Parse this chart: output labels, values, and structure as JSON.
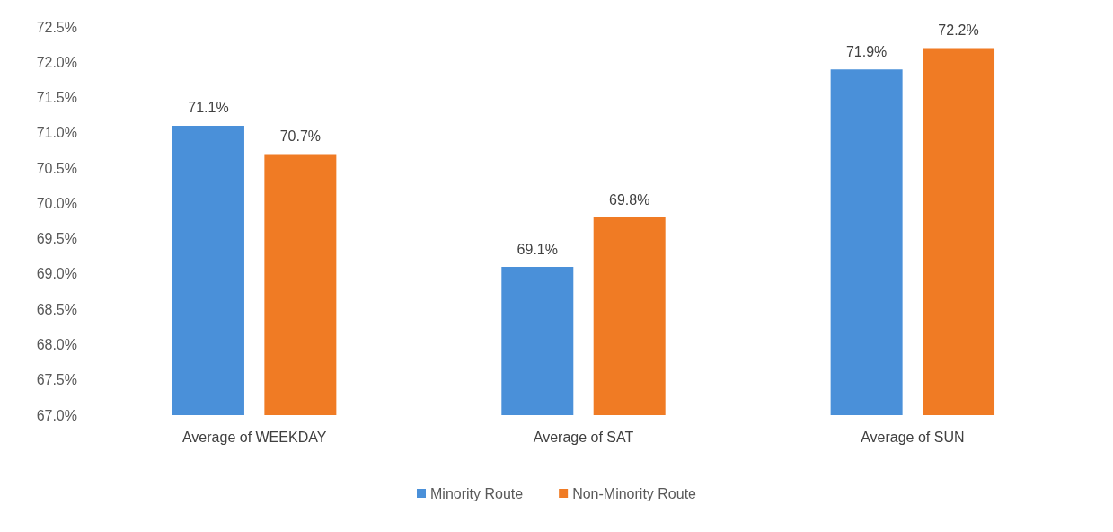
{
  "chart_data": {
    "type": "bar",
    "categories": [
      "Average of WEEKDAY",
      "Average of SAT",
      "Average of SUN"
    ],
    "series": [
      {
        "name": "Minority Route",
        "color": "#4a90d9",
        "values": [
          71.1,
          69.1,
          71.9
        ],
        "value_labels": [
          "71.1%",
          "69.1%",
          "71.9%"
        ]
      },
      {
        "name": "Non-Minority Route",
        "color": "#f07b24",
        "values": [
          70.7,
          69.8,
          72.2
        ],
        "value_labels": [
          "70.7%",
          "69.8%",
          "72.2%"
        ]
      }
    ],
    "ylim": [
      67,
      72.5
    ],
    "yticks": [
      {
        "value": 67,
        "label": "67.0%"
      },
      {
        "value": 67.5,
        "label": "67.5%"
      },
      {
        "value": 68,
        "label": "68.0%"
      },
      {
        "value": 68.5,
        "label": "68.5%"
      },
      {
        "value": 69,
        "label": "69.0%"
      },
      {
        "value": 69.5,
        "label": "69.5%"
      },
      {
        "value": 70,
        "label": "70.0%"
      },
      {
        "value": 70.5,
        "label": "70.5%"
      },
      {
        "value": 71,
        "label": "71.0%"
      },
      {
        "value": 71.5,
        "label": "71.5%"
      },
      {
        "value": 72,
        "label": "72.0%"
      },
      {
        "value": 72.5,
        "label": "72.5%"
      }
    ],
    "grid": false,
    "legend": "bottom"
  }
}
